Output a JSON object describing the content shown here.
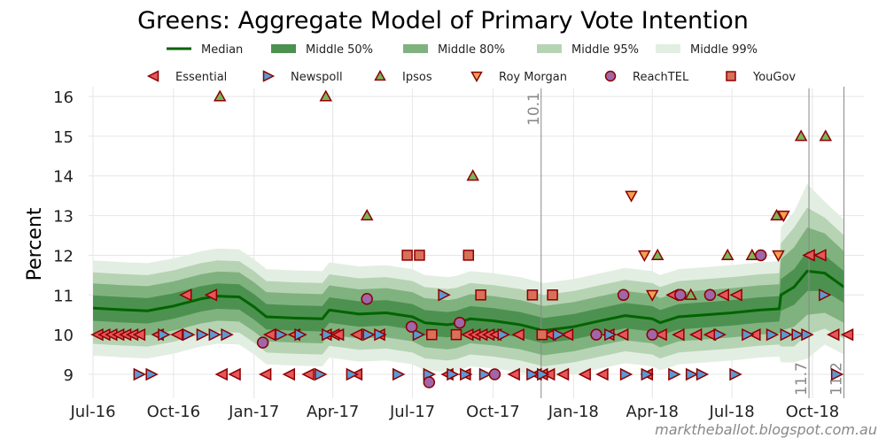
{
  "chart_data": {
    "type": "area",
    "title": "Greens: Aggregate Model of Primary Vote Intention",
    "ylabel": "Percent",
    "xlabel": "",
    "ylim": [
      8.45,
      16.25
    ],
    "xlim": [
      "2016-06-20",
      "2018-11-21"
    ],
    "yticks": [
      9,
      10,
      11,
      12,
      13,
      14,
      15,
      16
    ],
    "xticks": [
      {
        "date": "2016-07-01",
        "label": "Jul-16"
      },
      {
        "date": "2016-10-01",
        "label": "Oct-16"
      },
      {
        "date": "2017-01-01",
        "label": "Jan-17"
      },
      {
        "date": "2017-04-01",
        "label": "Apr-17"
      },
      {
        "date": "2017-07-01",
        "label": "Jul-17"
      },
      {
        "date": "2017-10-01",
        "label": "Oct-17"
      },
      {
        "date": "2018-01-01",
        "label": "Jan-18"
      },
      {
        "date": "2018-04-01",
        "label": "Apr-18"
      },
      {
        "date": "2018-07-01",
        "label": "Jul-18"
      },
      {
        "date": "2018-10-01",
        "label": "Oct-18"
      }
    ],
    "grid": true,
    "colors": {
      "median": "#006400",
      "middle_50": "#4d9150",
      "middle_80": "#80b27f",
      "middle_95": "#b6d4b4",
      "middle_99": "#e3eee2",
      "marker_edge": "#8b0000"
    },
    "median": {
      "name": "Median",
      "dates": [
        "2016-07-01",
        "2016-08-01",
        "2016-09-01",
        "2016-10-01",
        "2016-11-01",
        "2016-11-20",
        "2016-12-15",
        "2017-01-01",
        "2017-01-15",
        "2017-02-15",
        "2017-03-20",
        "2017-03-28",
        "2017-05-01",
        "2017-06-01",
        "2017-07-01",
        "2017-07-15",
        "2017-08-10",
        "2017-08-20",
        "2017-09-05",
        "2017-10-01",
        "2017-11-01",
        "2017-11-28",
        "2018-01-01",
        "2018-02-01",
        "2018-03-01",
        "2018-04-01",
        "2018-04-10",
        "2018-05-01",
        "2018-06-01",
        "2018-07-01",
        "2018-08-01",
        "2018-08-24",
        "2018-08-26",
        "2018-09-10",
        "2018-09-25",
        "2018-10-15",
        "2018-11-06"
      ],
      "values": [
        10.67,
        10.63,
        10.6,
        10.72,
        10.9,
        10.97,
        10.95,
        10.7,
        10.45,
        10.42,
        10.4,
        10.62,
        10.52,
        10.55,
        10.45,
        10.3,
        10.25,
        10.28,
        10.4,
        10.35,
        10.25,
        10.1,
        10.2,
        10.35,
        10.48,
        10.4,
        10.3,
        10.45,
        10.5,
        10.55,
        10.62,
        10.65,
        11.0,
        11.2,
        11.6,
        11.55,
        11.2
      ]
    },
    "bands": [
      {
        "name": "Middle 99%",
        "key": "middle_99",
        "halfwidth": [
          1.2,
          1.2,
          1.2,
          1.2,
          1.2,
          1.2,
          1.2,
          1.2,
          1.2,
          1.2,
          1.2,
          1.2,
          1.2,
          1.2,
          1.2,
          1.2,
          1.2,
          1.2,
          1.2,
          1.2,
          1.2,
          1.2,
          1.2,
          1.2,
          1.2,
          1.2,
          1.2,
          1.2,
          1.2,
          1.2,
          1.2,
          1.2,
          1.7,
          1.9,
          2.2,
          1.8,
          1.7
        ]
      },
      {
        "name": "Middle 95%",
        "key": "middle_95",
        "halfwidth": [
          0.9,
          0.9,
          0.9,
          0.9,
          0.9,
          0.9,
          0.9,
          0.9,
          0.9,
          0.9,
          0.9,
          0.9,
          0.9,
          0.9,
          0.9,
          0.9,
          0.9,
          0.9,
          0.9,
          0.9,
          0.9,
          0.9,
          0.9,
          0.9,
          0.9,
          0.9,
          0.9,
          0.9,
          0.9,
          0.9,
          0.9,
          0.9,
          1.3,
          1.5,
          1.6,
          1.4,
          1.3
        ]
      },
      {
        "name": "Middle 80%",
        "key": "middle_80",
        "halfwidth": [
          0.62,
          0.62,
          0.62,
          0.62,
          0.62,
          0.62,
          0.62,
          0.62,
          0.62,
          0.62,
          0.62,
          0.62,
          0.62,
          0.62,
          0.62,
          0.62,
          0.62,
          0.62,
          0.62,
          0.62,
          0.62,
          0.62,
          0.62,
          0.62,
          0.62,
          0.62,
          0.62,
          0.62,
          0.62,
          0.62,
          0.62,
          0.62,
          0.9,
          1.0,
          1.1,
          1.0,
          0.9
        ]
      },
      {
        "name": "Middle 50%",
        "key": "middle_50",
        "halfwidth": [
          0.32,
          0.32,
          0.32,
          0.32,
          0.32,
          0.32,
          0.32,
          0.32,
          0.32,
          0.32,
          0.32,
          0.32,
          0.32,
          0.32,
          0.32,
          0.32,
          0.32,
          0.32,
          0.32,
          0.32,
          0.32,
          0.32,
          0.32,
          0.32,
          0.32,
          0.32,
          0.32,
          0.32,
          0.32,
          0.32,
          0.32,
          0.32,
          0.4,
          0.45,
          0.5,
          0.45,
          0.4
        ]
      }
    ],
    "polls": [
      {
        "name": "Essential",
        "marker": "triangle-left",
        "color": "#e8555a",
        "points": [
          [
            "2016-07-06",
            10
          ],
          [
            "2016-07-14",
            10
          ],
          [
            "2016-07-22",
            10
          ],
          [
            "2016-07-30",
            10
          ],
          [
            "2016-08-07",
            10
          ],
          [
            "2016-08-15",
            10
          ],
          [
            "2016-08-23",
            10
          ],
          [
            "2016-09-13",
            10
          ],
          [
            "2016-10-05",
            10
          ],
          [
            "2017-01-19",
            10
          ],
          [
            "2017-02-16",
            10
          ],
          [
            "2017-03-24",
            10
          ],
          [
            "2017-04-02",
            10
          ],
          [
            "2017-04-07",
            10
          ],
          [
            "2017-04-28",
            10
          ],
          [
            "2017-05-24",
            10
          ],
          [
            "2017-09-02",
            10
          ],
          [
            "2017-09-10",
            10
          ],
          [
            "2017-09-18",
            10
          ],
          [
            "2017-09-26",
            10
          ],
          [
            "2017-10-04",
            10
          ],
          [
            "2017-10-30",
            10
          ],
          [
            "2017-12-05",
            10
          ],
          [
            "2017-12-25",
            10
          ],
          [
            "2018-02-10",
            10
          ],
          [
            "2018-02-26",
            10
          ],
          [
            "2018-04-11",
            10
          ],
          [
            "2018-05-01",
            10
          ],
          [
            "2018-05-21",
            10
          ],
          [
            "2018-06-06",
            10
          ],
          [
            "2018-07-27",
            10
          ],
          [
            "2018-10-25",
            10
          ],
          [
            "2018-11-10",
            10
          ],
          [
            "2016-11-25",
            9
          ],
          [
            "2016-12-10",
            9
          ],
          [
            "2017-01-14",
            9
          ],
          [
            "2017-02-10",
            9
          ],
          [
            "2017-03-04",
            9
          ],
          [
            "2017-04-28",
            9
          ],
          [
            "2017-08-10",
            9
          ],
          [
            "2017-08-30",
            9
          ],
          [
            "2017-10-25",
            9
          ],
          [
            "2017-11-19",
            9
          ],
          [
            "2017-11-26",
            9
          ],
          [
            "2017-12-04",
            9
          ],
          [
            "2017-12-20",
            9
          ],
          [
            "2018-01-14",
            9
          ],
          [
            "2018-02-03",
            9
          ],
          [
            "2018-03-26",
            9
          ],
          [
            "2016-10-15",
            11
          ],
          [
            "2016-11-13",
            11
          ],
          [
            "2018-04-24",
            11
          ],
          [
            "2018-06-21",
            11
          ],
          [
            "2018-07-06",
            11
          ],
          [
            "2018-09-27",
            12
          ],
          [
            "2018-10-10",
            12
          ]
        ]
      },
      {
        "name": "Newspoll",
        "marker": "triangle-right",
        "color": "#5b9bd5",
        "points": [
          [
            "2016-09-20",
            10
          ],
          [
            "2016-10-18",
            10
          ],
          [
            "2016-11-03",
            10
          ],
          [
            "2016-11-17",
            10
          ],
          [
            "2016-12-01",
            10
          ],
          [
            "2017-02-01",
            10
          ],
          [
            "2017-02-23",
            10
          ],
          [
            "2017-03-26",
            10
          ],
          [
            "2017-05-12",
            10
          ],
          [
            "2017-05-25",
            10
          ],
          [
            "2017-07-08",
            10
          ],
          [
            "2017-10-13",
            10
          ],
          [
            "2017-12-15",
            10
          ],
          [
            "2018-02-12",
            10
          ],
          [
            "2018-06-17",
            10
          ],
          [
            "2018-07-19",
            10
          ],
          [
            "2018-08-16",
            10
          ],
          [
            "2018-09-01",
            10
          ],
          [
            "2018-09-14",
            10
          ],
          [
            "2018-09-25",
            10
          ],
          [
            "2016-08-23",
            9
          ],
          [
            "2016-09-06",
            9
          ],
          [
            "2017-03-18",
            9
          ],
          [
            "2017-04-23",
            9
          ],
          [
            "2017-06-15",
            9
          ],
          [
            "2017-07-20",
            9
          ],
          [
            "2017-08-16",
            9
          ],
          [
            "2017-08-31",
            9
          ],
          [
            "2017-09-22",
            9
          ],
          [
            "2017-11-15",
            9
          ],
          [
            "2017-11-27",
            9
          ],
          [
            "2018-03-02",
            9
          ],
          [
            "2018-03-26",
            9
          ],
          [
            "2018-04-26",
            9
          ],
          [
            "2018-05-16",
            9
          ],
          [
            "2018-05-28",
            9
          ],
          [
            "2018-07-05",
            9
          ],
          [
            "2018-10-29",
            9
          ],
          [
            "2017-08-06",
            11
          ],
          [
            "2018-10-15",
            11
          ]
        ]
      },
      {
        "name": "Ipsos",
        "marker": "triangle-up",
        "color": "#7ab55c",
        "points": [
          [
            "2016-11-23",
            16
          ],
          [
            "2017-03-24",
            16
          ],
          [
            "2017-05-10",
            13
          ],
          [
            "2017-09-08",
            14
          ],
          [
            "2018-04-07",
            12
          ],
          [
            "2018-05-15",
            11
          ],
          [
            "2018-06-26",
            12
          ],
          [
            "2018-07-24",
            12
          ],
          [
            "2018-08-21",
            13
          ],
          [
            "2018-09-18",
            15
          ],
          [
            "2018-10-16",
            15
          ]
        ]
      },
      {
        "name": "Roy Morgan",
        "marker": "triangle-down",
        "color": "#f5a050",
        "points": [
          [
            "2018-03-08",
            13.5
          ],
          [
            "2018-03-23",
            12
          ],
          [
            "2018-04-01",
            11
          ],
          [
            "2018-08-23",
            12
          ],
          [
            "2018-08-29",
            13
          ]
        ]
      },
      {
        "name": "ReachTEL",
        "marker": "circle",
        "color": "#a066a8",
        "points": [
          [
            "2017-01-11",
            9.8
          ],
          [
            "2017-05-10",
            10.9
          ],
          [
            "2017-06-30",
            10.2
          ],
          [
            "2017-07-20",
            8.8
          ],
          [
            "2017-08-24",
            10.3
          ],
          [
            "2017-10-03",
            9
          ],
          [
            "2018-01-27",
            10
          ],
          [
            "2018-02-27",
            11
          ],
          [
            "2018-04-01",
            10
          ],
          [
            "2018-05-03",
            11
          ],
          [
            "2018-06-06",
            11
          ],
          [
            "2018-08-03",
            12
          ]
        ]
      },
      {
        "name": "YouGov",
        "marker": "square",
        "color": "#d9705a",
        "points": [
          [
            "2017-06-25",
            12
          ],
          [
            "2017-07-09",
            12
          ],
          [
            "2017-07-23",
            10
          ],
          [
            "2017-08-20",
            10
          ],
          [
            "2017-09-03",
            12
          ],
          [
            "2017-09-17",
            11
          ],
          [
            "2017-11-15",
            11
          ],
          [
            "2017-11-26",
            10
          ],
          [
            "2017-12-08",
            11
          ]
        ]
      }
    ],
    "events": [
      {
        "date": "2017-11-25",
        "label": "10.1",
        "label_position": "top"
      },
      {
        "date": "2018-09-27",
        "label": "11.7",
        "label_position": "bottom"
      },
      {
        "date": "2018-11-06",
        "label": "11.2",
        "label_position": "bottom"
      }
    ],
    "legend_placement": "top-center"
  },
  "footer": {
    "watermark": "marktheballot.blogspot.com.au"
  }
}
